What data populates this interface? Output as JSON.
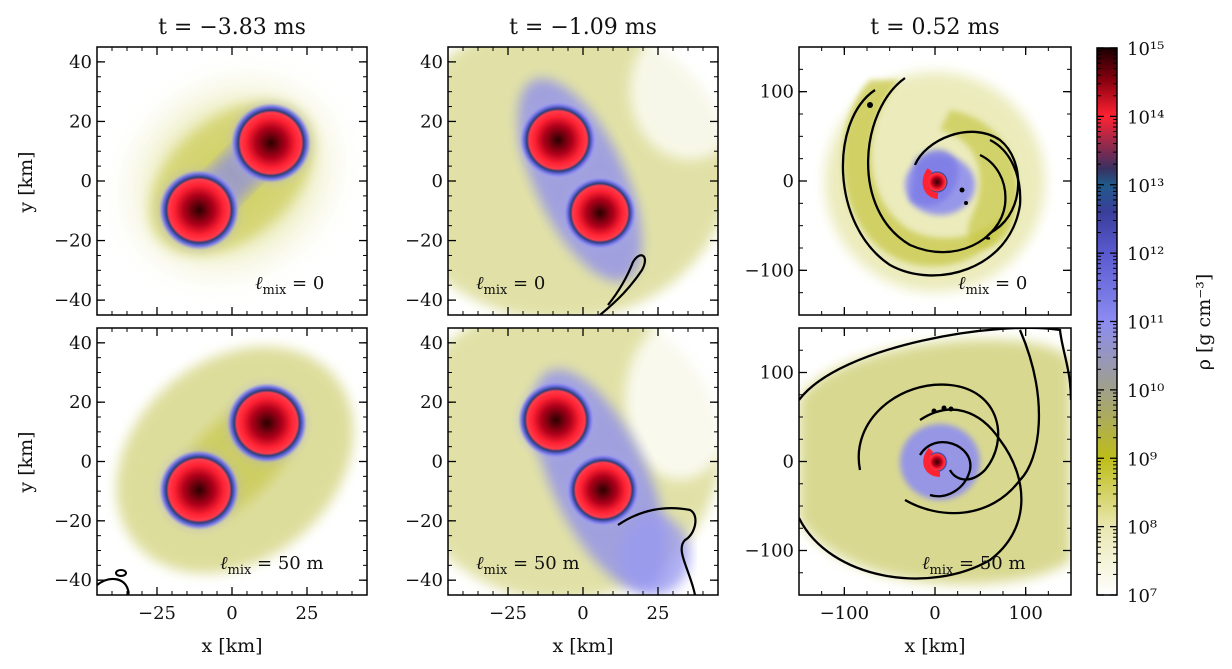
{
  "chart_data": {
    "type": "heatmap",
    "quantity_label": "ρ [g cm⁻³]",
    "colorbar": {
      "scale": "log",
      "range": [
        10000000.0,
        1000000000000000.0
      ],
      "tick_labels": [
        "10⁷",
        "10⁸",
        "10⁹",
        "10¹⁰",
        "10¹¹",
        "10¹²",
        "10¹³",
        "10¹⁴",
        "10¹⁵"
      ],
      "colors": {
        "1e7": "#ffffff",
        "1e8": "#e9e7b0",
        "1e9": "#bdbd19",
        "1e10": "#a0a08a",
        "1e11": "#8c8cf2",
        "1e12": "#5a5ad0",
        "1e13": "#2b4e86",
        "1e14": "#ff2233",
        "1e15": "#1a0000"
      },
      "contour_color": "#000000"
    },
    "columns": [
      {
        "title": "t = −3.83 ms",
        "xlim": [
          -45,
          45
        ],
        "ylim": [
          -45,
          45
        ],
        "xticks": [
          -25,
          0,
          25
        ],
        "yticks": [
          -40,
          -20,
          0,
          20,
          40
        ],
        "xtick_labels": [
          "−25",
          "0",
          "25"
        ],
        "ytick_labels": [
          "−40",
          "−20",
          "0",
          "20",
          "40"
        ],
        "stars": [
          {
            "x": 13,
            "y": 13,
            "r": 11
          },
          {
            "x": -11,
            "y": -10,
            "r": 11
          }
        ]
      },
      {
        "title": "t = −1.09 ms",
        "xlim": [
          -45,
          45
        ],
        "ylim": [
          -45,
          45
        ],
        "xticks": [
          -25,
          0,
          25
        ],
        "yticks": [
          -40,
          -20,
          0,
          20,
          40
        ],
        "xtick_labels": [
          "−25",
          "0",
          "25"
        ],
        "ytick_labels": [
          "−40",
          "−20",
          "0",
          "20",
          "40"
        ],
        "stars": [
          {
            "x": -7,
            "y": 14,
            "r": 11
          },
          {
            "x": 5,
            "y": -11,
            "r": 10
          }
        ]
      },
      {
        "title": "t = 0.52 ms",
        "xlim": [
          -150,
          150
        ],
        "ylim": [
          -150,
          150
        ],
        "xticks": [
          -100,
          0,
          100
        ],
        "yticks": [
          -100,
          0,
          100
        ],
        "xtick_labels": [
          "−100",
          "0",
          "100"
        ],
        "ytick_labels": [
          "−100",
          "0",
          "100"
        ],
        "stars": [
          {
            "x": 0,
            "y": 0,
            "r": 9
          }
        ]
      }
    ],
    "rows": [
      {
        "annotation_prefix": "ℓ",
        "annotation_sub": "mix",
        "annotation_value": " = 0"
      },
      {
        "annotation_prefix": "ℓ",
        "annotation_sub": "mix",
        "annotation_value": " = 50 m"
      }
    ],
    "xlabel": "x [km]",
    "ylabel": "y [km]",
    "grid": false
  }
}
